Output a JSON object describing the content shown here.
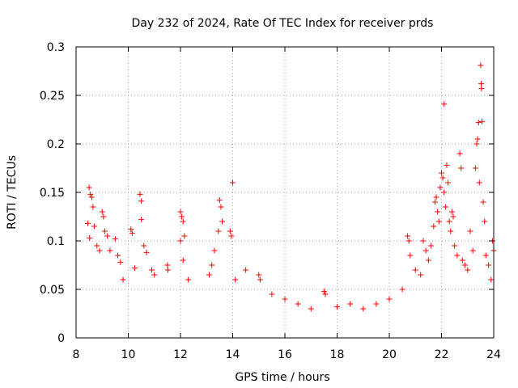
{
  "chart_data": {
    "type": "scatter",
    "title": "Day 232 of 2024, Rate Of TEC Index for receiver prds",
    "xlabel": "GPS time / hours",
    "ylabel": "ROTI / TECUs",
    "xlim": [
      8,
      24
    ],
    "ylim": [
      0,
      0.3
    ],
    "xticks": [
      8,
      10,
      12,
      14,
      16,
      18,
      20,
      22,
      24
    ],
    "yticks": [
      0,
      0.05,
      0.1,
      0.15,
      0.2,
      0.25,
      0.3
    ],
    "ytick_labels": [
      "0",
      "0.05",
      "0.1",
      "0.15",
      "0.2",
      "0.25",
      "0.3"
    ],
    "grid": true,
    "marker": "+",
    "series": [
      {
        "name": "ROTI",
        "color": "#ff0000",
        "points": [
          [
            8.5,
            0.155
          ],
          [
            8.55,
            0.148
          ],
          [
            8.6,
            0.145
          ],
          [
            8.45,
            0.118
          ],
          [
            8.7,
            0.115
          ],
          [
            8.65,
            0.135
          ],
          [
            8.52,
            0.103
          ],
          [
            8.8,
            0.095
          ],
          [
            8.9,
            0.09
          ],
          [
            9.0,
            0.13
          ],
          [
            9.05,
            0.125
          ],
          [
            9.1,
            0.11
          ],
          [
            9.2,
            0.105
          ],
          [
            9.3,
            0.09
          ],
          [
            9.5,
            0.102
          ],
          [
            9.6,
            0.085
          ],
          [
            9.7,
            0.078
          ],
          [
            9.8,
            0.06
          ],
          [
            10.1,
            0.112
          ],
          [
            10.15,
            0.108
          ],
          [
            10.25,
            0.072
          ],
          [
            10.45,
            0.148
          ],
          [
            10.5,
            0.141
          ],
          [
            10.5,
            0.122
          ],
          [
            10.6,
            0.095
          ],
          [
            10.7,
            0.088
          ],
          [
            10.9,
            0.07
          ],
          [
            11.0,
            0.065
          ],
          [
            11.5,
            0.075
          ],
          [
            11.52,
            0.07
          ],
          [
            12.0,
            0.13
          ],
          [
            12.05,
            0.125
          ],
          [
            12.1,
            0.12
          ],
          [
            12.15,
            0.105
          ],
          [
            12.0,
            0.1
          ],
          [
            12.1,
            0.08
          ],
          [
            12.3,
            0.06
          ],
          [
            13.5,
            0.142
          ],
          [
            13.55,
            0.135
          ],
          [
            13.6,
            0.12
          ],
          [
            13.45,
            0.11
          ],
          [
            13.3,
            0.09
          ],
          [
            13.2,
            0.075
          ],
          [
            13.1,
            0.065
          ],
          [
            13.9,
            0.11
          ],
          [
            13.95,
            0.105
          ],
          [
            14.0,
            0.16
          ],
          [
            14.1,
            0.06
          ],
          [
            14.5,
            0.07
          ],
          [
            15.0,
            0.065
          ],
          [
            15.05,
            0.06
          ],
          [
            15.5,
            0.045
          ],
          [
            16.0,
            0.04
          ],
          [
            16.5,
            0.035
          ],
          [
            17.0,
            0.03
          ],
          [
            17.5,
            0.048
          ],
          [
            17.55,
            0.045
          ],
          [
            18.0,
            0.032
          ],
          [
            18.5,
            0.035
          ],
          [
            19.0,
            0.03
          ],
          [
            19.5,
            0.035
          ],
          [
            20.0,
            0.04
          ],
          [
            20.5,
            0.05
          ],
          [
            20.7,
            0.105
          ],
          [
            20.75,
            0.1
          ],
          [
            20.8,
            0.085
          ],
          [
            21.0,
            0.07
          ],
          [
            21.2,
            0.065
          ],
          [
            21.3,
            0.1
          ],
          [
            21.4,
            0.09
          ],
          [
            21.5,
            0.08
          ],
          [
            21.6,
            0.095
          ],
          [
            21.7,
            0.115
          ],
          [
            21.75,
            0.14
          ],
          [
            21.8,
            0.145
          ],
          [
            21.85,
            0.13
          ],
          [
            21.9,
            0.12
          ],
          [
            21.95,
            0.155
          ],
          [
            22.0,
            0.17
          ],
          [
            22.05,
            0.165
          ],
          [
            22.1,
            0.15
          ],
          [
            22.15,
            0.135
          ],
          [
            22.1,
            0.241
          ],
          [
            22.2,
            0.178
          ],
          [
            22.25,
            0.16
          ],
          [
            22.3,
            0.12
          ],
          [
            22.35,
            0.11
          ],
          [
            22.4,
            0.13
          ],
          [
            22.45,
            0.125
          ],
          [
            22.5,
            0.095
          ],
          [
            22.6,
            0.085
          ],
          [
            22.7,
            0.19
          ],
          [
            22.75,
            0.175
          ],
          [
            22.8,
            0.08
          ],
          [
            22.9,
            0.075
          ],
          [
            23.0,
            0.07
          ],
          [
            23.1,
            0.11
          ],
          [
            23.2,
            0.09
          ],
          [
            23.3,
            0.175
          ],
          [
            23.35,
            0.2
          ],
          [
            23.38,
            0.205
          ],
          [
            23.42,
            0.222
          ],
          [
            23.45,
            0.16
          ],
          [
            23.5,
            0.281
          ],
          [
            23.52,
            0.262
          ],
          [
            23.53,
            0.257
          ],
          [
            23.55,
            0.223
          ],
          [
            23.6,
            0.14
          ],
          [
            23.65,
            0.12
          ],
          [
            23.7,
            0.085
          ],
          [
            23.8,
            0.075
          ],
          [
            23.9,
            0.06
          ],
          [
            23.95,
            0.1
          ],
          [
            24.0,
            0.09
          ]
        ]
      }
    ]
  }
}
